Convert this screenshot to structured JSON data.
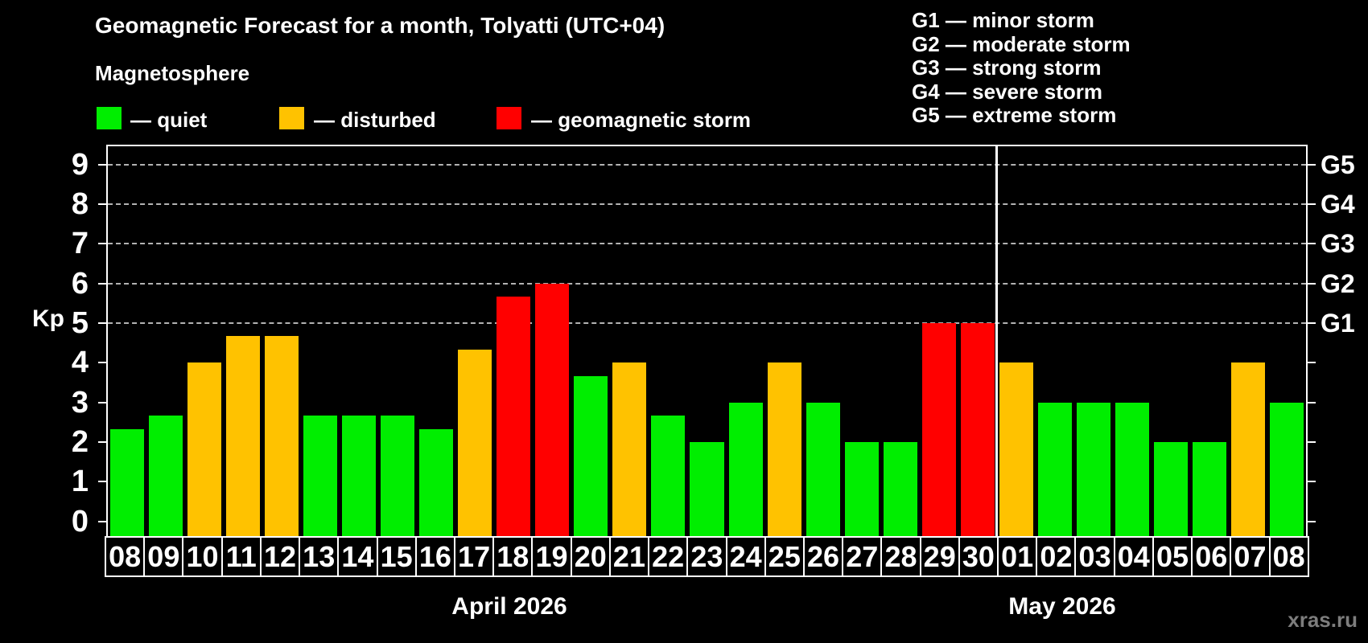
{
  "header": {
    "title": "Geomagnetic Forecast for a month, Tolyatti (UTC+04)",
    "subtitle": "Magnetosphere"
  },
  "legend": {
    "items": [
      {
        "status": "quiet",
        "label": "— quiet"
      },
      {
        "status": "disturbed",
        "label": "— disturbed"
      },
      {
        "status": "storm",
        "label": "— geomagnetic storm"
      }
    ]
  },
  "gscale_legend": {
    "items": [
      "G1 — minor storm",
      "G2 — moderate storm",
      "G3 — strong storm",
      "G4 — severe storm",
      "G5 — extreme storm"
    ]
  },
  "watermark": "xras.ru",
  "chart_data": {
    "type": "bar",
    "title": "Geomagnetic Forecast for a month, Tolyatti (UTC+04)",
    "ylabel": "Kp",
    "ylim": [
      0,
      9
    ],
    "yticks": [
      0,
      1,
      2,
      3,
      4,
      5,
      6,
      7,
      8,
      9
    ],
    "gridlines_kp": [
      5,
      6,
      7,
      8,
      9
    ],
    "grid_style": "dashed",
    "legend_position": "top",
    "right_axis_labels": [
      {
        "kp": 5,
        "label": "G1"
      },
      {
        "kp": 6,
        "label": "G2"
      },
      {
        "kp": 7,
        "label": "G3"
      },
      {
        "kp": 8,
        "label": "G4"
      },
      {
        "kp": 9,
        "label": "G5"
      }
    ],
    "status_colors": {
      "quiet": "#00ee00",
      "disturbed": "#ffc200",
      "storm": "#ff0000"
    },
    "months": [
      {
        "label": "April 2026",
        "month": "april"
      },
      {
        "label": "May 2026",
        "month": "may"
      }
    ],
    "days": [
      {
        "day": "08",
        "month": "april",
        "kp": 2.33,
        "status": "quiet"
      },
      {
        "day": "09",
        "month": "april",
        "kp": 2.67,
        "status": "quiet"
      },
      {
        "day": "10",
        "month": "april",
        "kp": 4.0,
        "status": "disturbed"
      },
      {
        "day": "11",
        "month": "april",
        "kp": 4.67,
        "status": "disturbed"
      },
      {
        "day": "12",
        "month": "april",
        "kp": 4.67,
        "status": "disturbed"
      },
      {
        "day": "13",
        "month": "april",
        "kp": 2.67,
        "status": "quiet"
      },
      {
        "day": "14",
        "month": "april",
        "kp": 2.67,
        "status": "quiet"
      },
      {
        "day": "15",
        "month": "april",
        "kp": 2.67,
        "status": "quiet"
      },
      {
        "day": "16",
        "month": "april",
        "kp": 2.33,
        "status": "quiet"
      },
      {
        "day": "17",
        "month": "april",
        "kp": 4.33,
        "status": "disturbed"
      },
      {
        "day": "18",
        "month": "april",
        "kp": 5.67,
        "status": "storm"
      },
      {
        "day": "19",
        "month": "april",
        "kp": 6.0,
        "status": "storm"
      },
      {
        "day": "20",
        "month": "april",
        "kp": 3.67,
        "status": "quiet"
      },
      {
        "day": "21",
        "month": "april",
        "kp": 4.0,
        "status": "disturbed"
      },
      {
        "day": "22",
        "month": "april",
        "kp": 2.67,
        "status": "quiet"
      },
      {
        "day": "23",
        "month": "april",
        "kp": 2.0,
        "status": "quiet"
      },
      {
        "day": "24",
        "month": "april",
        "kp": 3.0,
        "status": "quiet"
      },
      {
        "day": "25",
        "month": "april",
        "kp": 4.0,
        "status": "disturbed"
      },
      {
        "day": "26",
        "month": "april",
        "kp": 3.0,
        "status": "quiet"
      },
      {
        "day": "27",
        "month": "april",
        "kp": 2.0,
        "status": "quiet"
      },
      {
        "day": "28",
        "month": "april",
        "kp": 2.0,
        "status": "quiet"
      },
      {
        "day": "29",
        "month": "april",
        "kp": 5.0,
        "status": "storm"
      },
      {
        "day": "30",
        "month": "april",
        "kp": 5.0,
        "status": "storm"
      },
      {
        "day": "01",
        "month": "may",
        "kp": 4.0,
        "status": "disturbed"
      },
      {
        "day": "02",
        "month": "may",
        "kp": 3.0,
        "status": "quiet"
      },
      {
        "day": "03",
        "month": "may",
        "kp": 3.0,
        "status": "quiet"
      },
      {
        "day": "04",
        "month": "may",
        "kp": 3.0,
        "status": "quiet"
      },
      {
        "day": "05",
        "month": "may",
        "kp": 2.0,
        "status": "quiet"
      },
      {
        "day": "06",
        "month": "may",
        "kp": 2.0,
        "status": "quiet"
      },
      {
        "day": "07",
        "month": "may",
        "kp": 4.0,
        "status": "disturbed"
      },
      {
        "day": "08",
        "month": "may",
        "kp": 3.0,
        "status": "quiet"
      }
    ]
  }
}
